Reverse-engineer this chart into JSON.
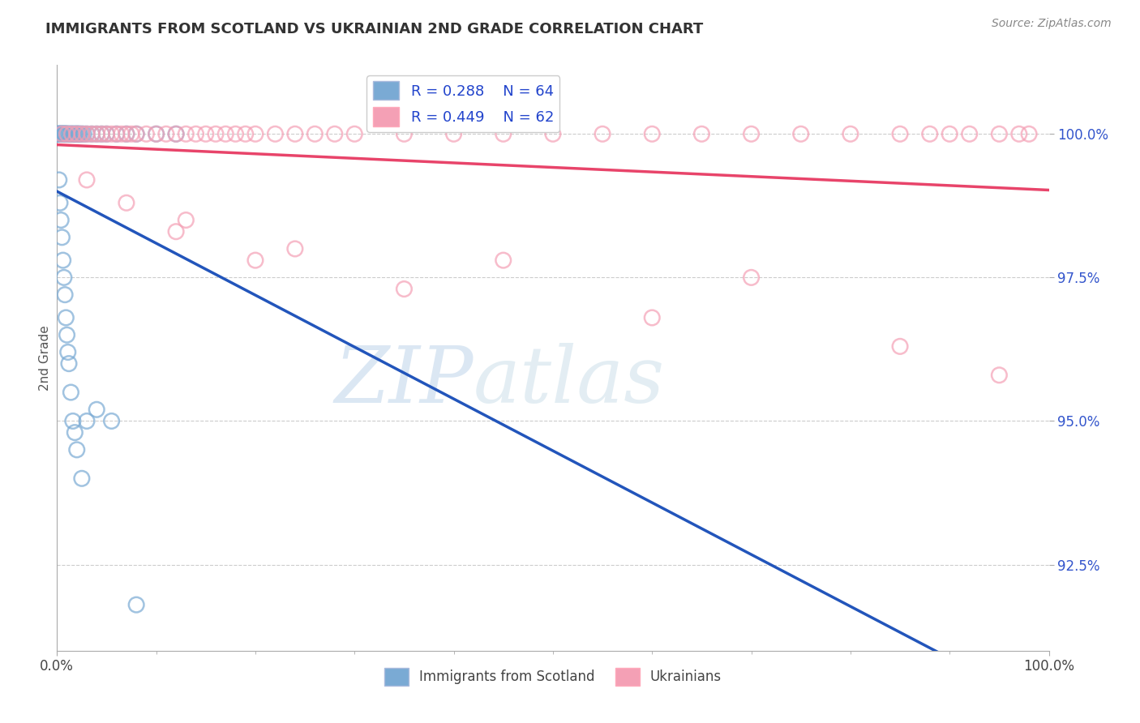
{
  "title": "IMMIGRANTS FROM SCOTLAND VS UKRAINIAN 2ND GRADE CORRELATION CHART",
  "source": "Source: ZipAtlas.com",
  "ylabel": "2nd Grade",
  "y_ticks": [
    92.5,
    95.0,
    97.5,
    100.0
  ],
  "y_tick_labels": [
    "92.5%",
    "95.0%",
    "97.5%",
    "100.0%"
  ],
  "x_tick_labels": [
    "0.0%",
    "100.0%"
  ],
  "legend_label1": "Immigrants from Scotland",
  "legend_label2": "Ukrainians",
  "R1": 0.288,
  "N1": 64,
  "R2": 0.449,
  "N2": 62,
  "color1": "#7aaad4",
  "color2": "#f4a0b5",
  "trendline1_color": "#2255bb",
  "trendline2_color": "#e8446a",
  "watermark_zip": "ZIP",
  "watermark_atlas": "atlas",
  "watermark_color_zip": "#b8d0e8",
  "watermark_color_atlas": "#c8dde8",
  "background": "#ffffff",
  "scotland_x": [
    0.1,
    0.15,
    0.2,
    0.25,
    0.3,
    0.35,
    0.4,
    0.45,
    0.5,
    0.55,
    0.6,
    0.65,
    0.7,
    0.75,
    0.8,
    0.85,
    0.9,
    0.95,
    1.0,
    1.1,
    1.2,
    1.3,
    1.4,
    1.5,
    1.6,
    1.7,
    1.8,
    1.9,
    2.0,
    2.1,
    2.2,
    2.3,
    2.5,
    2.7,
    3.0,
    3.5,
    4.0,
    4.5,
    5.0,
    6.0,
    7.0,
    8.0,
    10.0,
    12.0,
    0.2,
    0.3,
    0.4,
    0.5,
    0.6,
    0.7,
    0.8,
    0.9,
    1.0,
    1.1,
    1.2,
    1.4,
    1.6,
    1.8,
    2.0,
    2.5,
    3.0,
    4.0,
    5.5,
    8.0
  ],
  "scotland_y": [
    100.0,
    100.0,
    100.0,
    100.0,
    100.0,
    100.0,
    100.0,
    100.0,
    100.0,
    100.0,
    100.0,
    100.0,
    100.0,
    100.0,
    100.0,
    100.0,
    100.0,
    100.0,
    100.0,
    100.0,
    100.0,
    100.0,
    100.0,
    100.0,
    100.0,
    100.0,
    100.0,
    100.0,
    100.0,
    100.0,
    100.0,
    100.0,
    100.0,
    100.0,
    100.0,
    100.0,
    100.0,
    100.0,
    100.0,
    100.0,
    100.0,
    100.0,
    100.0,
    100.0,
    99.2,
    98.8,
    98.5,
    98.2,
    97.8,
    97.5,
    97.2,
    96.8,
    96.5,
    96.2,
    96.0,
    95.5,
    95.0,
    94.8,
    94.5,
    94.0,
    95.0,
    95.2,
    95.0,
    91.8
  ],
  "ukraine_x": [
    0.5,
    1.0,
    1.5,
    2.0,
    2.5,
    3.0,
    3.5,
    4.0,
    4.5,
    5.0,
    5.5,
    6.0,
    6.5,
    7.0,
    7.5,
    8.0,
    9.0,
    10.0,
    11.0,
    12.0,
    13.0,
    14.0,
    15.0,
    16.0,
    17.0,
    18.0,
    19.0,
    20.0,
    22.0,
    24.0,
    26.0,
    28.0,
    30.0,
    35.0,
    40.0,
    45.0,
    50.0,
    55.0,
    60.0,
    65.0,
    70.0,
    75.0,
    80.0,
    85.0,
    88.0,
    90.0,
    92.0,
    95.0,
    97.0,
    98.0,
    13.0,
    24.0,
    45.0,
    70.0,
    3.0,
    7.0,
    12.0,
    20.0,
    35.0,
    60.0,
    85.0,
    95.0
  ],
  "ukraine_y": [
    100.0,
    100.0,
    100.0,
    100.0,
    100.0,
    100.0,
    100.0,
    100.0,
    100.0,
    100.0,
    100.0,
    100.0,
    100.0,
    100.0,
    100.0,
    100.0,
    100.0,
    100.0,
    100.0,
    100.0,
    100.0,
    100.0,
    100.0,
    100.0,
    100.0,
    100.0,
    100.0,
    100.0,
    100.0,
    100.0,
    100.0,
    100.0,
    100.0,
    100.0,
    100.0,
    100.0,
    100.0,
    100.0,
    100.0,
    100.0,
    100.0,
    100.0,
    100.0,
    100.0,
    100.0,
    100.0,
    100.0,
    100.0,
    100.0,
    100.0,
    98.5,
    98.0,
    97.8,
    97.5,
    99.2,
    98.8,
    98.3,
    97.8,
    97.3,
    96.8,
    96.3,
    95.8
  ]
}
